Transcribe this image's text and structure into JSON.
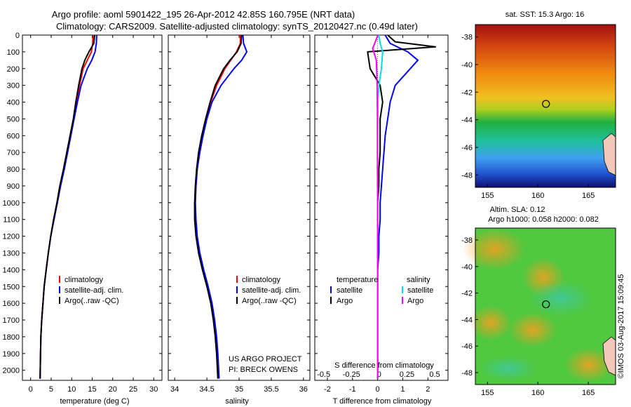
{
  "header": {
    "title": "Argo profile: aoml 5901422_195 26-Apr-2012 42.85S 160.795E (NRT data)",
    "subtitle": "Climatology: CARS2009. Satellite-adjusted climatology: synTS_20120427.nc (0.49d later)"
  },
  "colors": {
    "climatology": "#ff0000",
    "satellite": "#0000ff",
    "argo": "#000000",
    "temperature_satellite": "#0000ff",
    "salinity_satellite": "#00e0e0",
    "salinity_argo": "#ff00ff"
  },
  "chart_data": [
    {
      "type": "line",
      "xlabel": "temperature (deg C)",
      "xlim": [
        -2,
        32
      ],
      "ylim": [
        0,
        2060
      ],
      "xticks": [
        "0",
        "5",
        "10",
        "15",
        "20",
        "25",
        "30"
      ],
      "xtick_values": [
        0,
        5,
        10,
        15,
        20,
        25,
        30
      ],
      "yticks": [
        "0",
        "100",
        "200",
        "300",
        "400",
        "500",
        "600",
        "700",
        "800",
        "900",
        "1000",
        "1100",
        "1200",
        "1300",
        "1400",
        "1500",
        "1600",
        "1700",
        "1800",
        "1900",
        "2000"
      ],
      "ytick_values": [
        0,
        100,
        200,
        300,
        400,
        500,
        600,
        700,
        800,
        900,
        1000,
        1100,
        1200,
        1300,
        1400,
        1500,
        1600,
        1700,
        1800,
        1900,
        2000
      ],
      "legend": [
        "climatology",
        "satellite-adj. clim.",
        "Argo(..raw -QC)"
      ],
      "series": [
        {
          "name": "climatology",
          "color": "#ff0000",
          "x": [
            15.2,
            15.1,
            14.8,
            13.8,
            12.8,
            11.9,
            11.2,
            10.5,
            9.7,
            8.9,
            8.1,
            7.2,
            6.5,
            5.6,
            4.9,
            4.3,
            3.8,
            3.3,
            3.0,
            2.7,
            2.5,
            2.4,
            2.3
          ],
          "y": [
            0,
            50,
            100,
            150,
            200,
            300,
            400,
            500,
            600,
            700,
            800,
            900,
            1000,
            1100,
            1200,
            1300,
            1400,
            1500,
            1600,
            1700,
            1800,
            1900,
            2050
          ]
        },
        {
          "name": "satellite-adj. clim.",
          "color": "#0000ff",
          "x": [
            16.1,
            16.0,
            15.7,
            14.9,
            13.8,
            12.3,
            11.4,
            10.6,
            9.8,
            9.0,
            8.2,
            7.3,
            6.5,
            5.7,
            4.9,
            4.3,
            3.8,
            3.3,
            3.0,
            2.7,
            2.5,
            2.4,
            2.3
          ],
          "y": [
            0,
            50,
            100,
            150,
            200,
            300,
            400,
            500,
            600,
            700,
            800,
            900,
            1000,
            1100,
            1200,
            1300,
            1400,
            1500,
            1600,
            1700,
            1800,
            1900,
            2050
          ]
        },
        {
          "name": "Argo(..raw -QC)",
          "color": "#000000",
          "x": [
            15.6,
            15.4,
            14.2,
            13.2,
            12.5,
            11.7,
            11.0,
            10.4,
            9.6,
            8.8,
            8.0,
            7.1,
            6.4,
            5.6,
            4.9,
            4.3,
            3.8,
            3.3,
            3.0,
            2.7,
            2.5,
            2.4,
            2.3
          ],
          "y": [
            0,
            50,
            100,
            150,
            200,
            300,
            400,
            500,
            600,
            700,
            800,
            900,
            1000,
            1100,
            1200,
            1300,
            1400,
            1500,
            1600,
            1700,
            1800,
            1900,
            2050
          ]
        }
      ]
    },
    {
      "type": "line",
      "xlabel": "salinity",
      "xlim": [
        33.9,
        36.1
      ],
      "ylim": [
        0,
        2060
      ],
      "xticks": [
        "34",
        "34.5",
        "35",
        "35.5",
        "36"
      ],
      "xtick_values": [
        34,
        34.5,
        35,
        35.5,
        36
      ],
      "legend": [
        "climatology",
        "satellite-adj. clim.",
        "Argo(..raw -QC)"
      ],
      "annotation": [
        "US ARGO PROJECT",
        "PI: BRECK OWENS"
      ],
      "series": [
        {
          "name": "climatology",
          "color": "#ff0000",
          "x": [
            35.02,
            35.02,
            34.96,
            34.87,
            34.78,
            34.65,
            34.56,
            34.49,
            34.43,
            34.38,
            34.35,
            34.33,
            34.32,
            34.32,
            34.34,
            34.38,
            34.44,
            34.51,
            34.57,
            34.61,
            34.64,
            34.66,
            34.68
          ],
          "y": [
            0,
            50,
            100,
            150,
            200,
            300,
            400,
            500,
            600,
            700,
            800,
            900,
            1000,
            1100,
            1200,
            1300,
            1400,
            1500,
            1600,
            1700,
            1800,
            1900,
            2050
          ]
        },
        {
          "name": "satellite-adj. clim.",
          "color": "#0000ff",
          "x": [
            35.06,
            35.07,
            35.12,
            35.04,
            34.92,
            34.72,
            34.58,
            34.5,
            34.44,
            34.39,
            34.35,
            34.33,
            34.32,
            34.33,
            34.35,
            34.39,
            34.45,
            34.52,
            34.58,
            34.62,
            34.65,
            34.67,
            34.69
          ],
          "y": [
            0,
            50,
            100,
            150,
            200,
            300,
            400,
            500,
            600,
            700,
            800,
            900,
            1000,
            1100,
            1200,
            1300,
            1400,
            1500,
            1600,
            1700,
            1800,
            1900,
            2050
          ]
        },
        {
          "name": "Argo(..raw -QC)",
          "color": "#000000",
          "x": [
            35.04,
            35.03,
            34.97,
            34.86,
            34.76,
            34.63,
            34.55,
            34.48,
            34.42,
            34.37,
            34.34,
            34.32,
            34.31,
            34.31,
            34.33,
            34.37,
            34.43,
            34.5,
            34.56,
            34.6,
            34.63,
            34.65,
            34.67
          ],
          "y": [
            0,
            50,
            100,
            150,
            200,
            300,
            400,
            500,
            600,
            700,
            800,
            900,
            1000,
            1100,
            1200,
            1300,
            1400,
            1500,
            1600,
            1700,
            1800,
            1900,
            2050
          ]
        }
      ]
    },
    {
      "type": "line",
      "xlabel": "T difference from climatology",
      "xlabel_top": "S difference from climatology",
      "xlim": [
        -2.5,
        2.8
      ],
      "ylim": [
        0,
        2060
      ],
      "xticks": [
        "-2",
        "-1",
        "0",
        "1",
        "2"
      ],
      "xtick_values": [
        -2,
        -1,
        0,
        1,
        2
      ],
      "xticks_top": [
        "-0.5",
        "-0.25",
        "0",
        "0.25",
        "0.5"
      ],
      "legend_temperature_title": "temperature",
      "legend_salinity_title": "salinity",
      "legend_temperature": [
        "satellite",
        "Argo"
      ],
      "legend_salinity": [
        "satellite",
        "Argo"
      ],
      "series": [
        {
          "name": "temperature satellite",
          "color": "#0000ff",
          "x": [
            0.3,
            0.5,
            1.2,
            1.6,
            1.3,
            0.7,
            0.5,
            0.4,
            0.3,
            0.25,
            0.2,
            0.15,
            0.1,
            0.1,
            0.05,
            0.05,
            0.0,
            0.0,
            0.0,
            0.0,
            0.0,
            0.0
          ],
          "y": [
            0,
            50,
            100,
            150,
            200,
            300,
            400,
            500,
            600,
            700,
            800,
            900,
            1000,
            1100,
            1200,
            1300,
            1400,
            1500,
            1600,
            1700,
            1800,
            2050
          ]
        },
        {
          "name": "temperature Argo",
          "color": "#000000",
          "x": [
            0.4,
            0.7,
            2.3,
            -0.4,
            -0.3,
            0.1,
            0.2,
            0.1,
            0.1,
            0.1,
            0.05,
            0.05,
            0.0,
            0.0,
            0.0,
            0.0,
            0.0,
            0.0,
            0.0,
            0.0,
            0.0,
            0.0
          ],
          "y": [
            0,
            40,
            70,
            100,
            200,
            300,
            400,
            500,
            600,
            700,
            800,
            900,
            1000,
            1100,
            1200,
            1300,
            1400,
            1500,
            1600,
            1700,
            1800,
            2050
          ]
        },
        {
          "name": "salinity satellite",
          "color": "#00e0e0",
          "x": [
            0.05,
            0.1,
            0.2,
            0.15,
            0.05,
            0.01,
            0.0,
            0.0,
            0.0,
            0.0,
            0.0
          ],
          "y": [
            0,
            50,
            100,
            200,
            300,
            400,
            600,
            900,
            1200,
            1500,
            2050
          ]
        },
        {
          "name": "salinity Argo",
          "color": "#ff00ff",
          "x": [
            0.01,
            -0.2,
            -0.05,
            -0.02,
            -0.01,
            -0.01,
            0.0,
            0.0,
            0.0,
            0.0,
            0.0
          ],
          "y": [
            0,
            80,
            150,
            300,
            500,
            800,
            1000,
            1200,
            1500,
            1800,
            2050
          ]
        }
      ]
    }
  ],
  "maps": {
    "sst": {
      "title": "sat. SST: 15.3 Argo: 16",
      "xticks": [
        "155",
        "160",
        "165"
      ],
      "xtick_values": [
        155,
        160,
        165
      ],
      "yticks": [
        "-38",
        "-40",
        "-42",
        "-44",
        "-46",
        "-48"
      ],
      "ytick_values": [
        -38,
        -40,
        -42,
        -44,
        -46,
        -48
      ],
      "xlim": [
        153.8,
        167.7
      ],
      "ylim": [
        -48.9,
        -37.1
      ],
      "marker": [
        160.8,
        -42.85
      ]
    },
    "sla": {
      "title_line1": "Altim. SLA: 0.12",
      "title_line2": "Argo h1000: 0.058 h2000: 0.082",
      "xticks": [
        "155",
        "160",
        "165"
      ],
      "xtick_values": [
        155,
        160,
        165
      ],
      "yticks": [
        "-38",
        "-40",
        "-42",
        "-44",
        "-46",
        "-48"
      ],
      "ytick_values": [
        -38,
        -40,
        -42,
        -44,
        -46,
        -48
      ],
      "xlim": [
        153.8,
        167.7
      ],
      "ylim": [
        -48.9,
        -37.1
      ],
      "marker": [
        160.8,
        -42.85
      ]
    }
  },
  "credit": "©IMOS 03-Aug-2017 15:09:45"
}
